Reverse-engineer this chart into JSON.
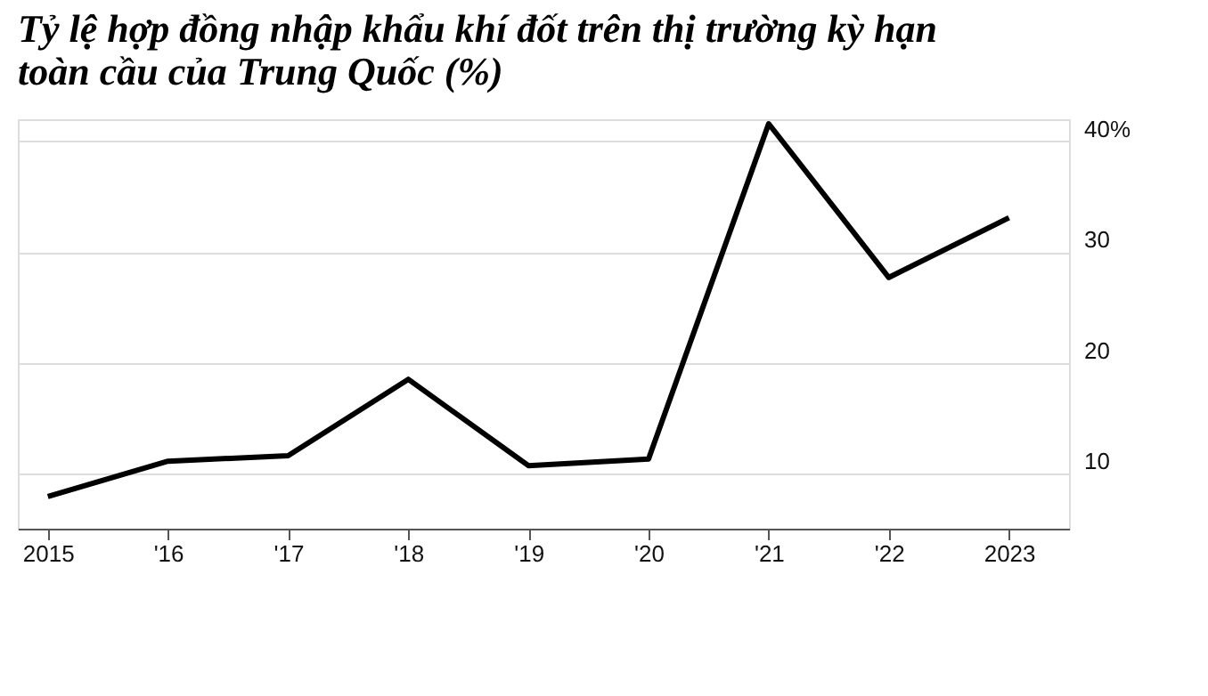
{
  "chart_data": {
    "type": "line",
    "title": "Tỷ lệ hợp đồng nhập khẩu khí đốt trên thị trường kỳ hạn toàn cầu của Trung Quốc (%)",
    "categories": [
      "2015",
      "'16",
      "'17",
      "'18",
      "'19",
      "'20",
      "'21",
      "'22",
      "2023"
    ],
    "series": [
      {
        "color": "#000000",
        "values": [
          7.9,
          11.1,
          11.6,
          18.5,
          10.7,
          11.3,
          41.6,
          27.7,
          33.1
        ]
      }
    ],
    "ylim": [
      5,
      42
    ],
    "yticks": [
      {
        "value": 10,
        "label": "10"
      },
      {
        "value": 20,
        "label": "20"
      },
      {
        "value": 30,
        "label": "30"
      },
      {
        "value": 40,
        "label": "40%"
      }
    ],
    "grid": "y",
    "marker": "none",
    "line_style": "solid"
  }
}
